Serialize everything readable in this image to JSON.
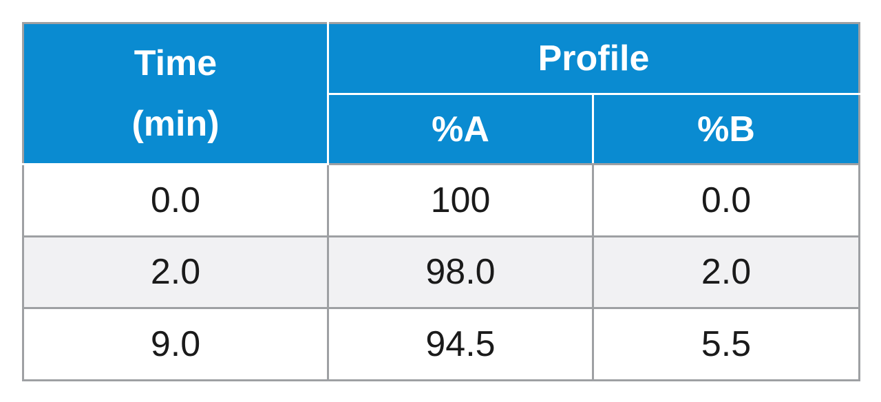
{
  "table": {
    "header": {
      "time_line1": "Time",
      "time_line2": "(min)",
      "profile": "Profile",
      "col_a": "%A",
      "col_b": "%B"
    },
    "rows": [
      {
        "time": "0.0",
        "a": "100",
        "b": "0.0"
      },
      {
        "time": "2.0",
        "a": "98.0",
        "b": "2.0"
      },
      {
        "time": "9.0",
        "a": "94.5",
        "b": "5.5"
      }
    ]
  },
  "colors": {
    "header_bg": "#0a8bd1",
    "header_text": "#ffffff",
    "border": "#9ea0a3",
    "alt_row_bg": "#f1f1f3"
  }
}
